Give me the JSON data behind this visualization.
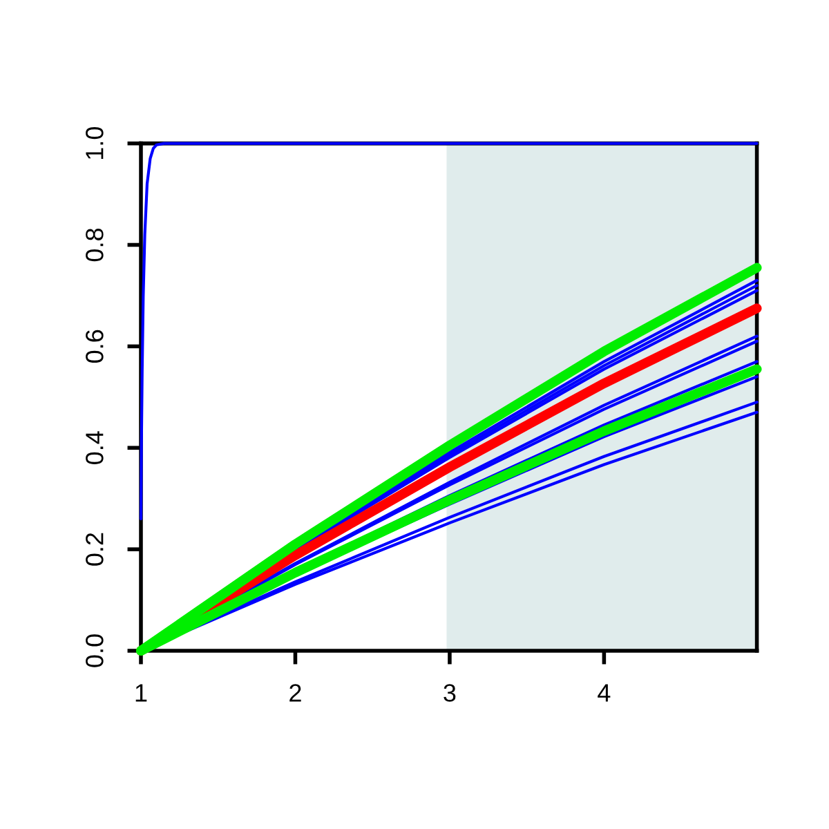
{
  "chart_data": {
    "type": "line",
    "x": [
      1,
      2,
      3,
      4,
      4.99
    ],
    "xlim": [
      1,
      4.99
    ],
    "ylim": [
      0,
      1
    ],
    "xticks": [
      1,
      2,
      3,
      4
    ],
    "yticks": [
      {
        "value": 0,
        "label": "0.0"
      },
      {
        "value": 0.2,
        "label": "0.2"
      },
      {
        "value": 0.4,
        "label": "0.4"
      },
      {
        "value": 0.6,
        "label": "0.6"
      },
      {
        "value": 0.8,
        "label": "0.8"
      },
      {
        "value": 1,
        "label": "1.0"
      }
    ],
    "grid": false,
    "legend": false,
    "bands": [
      {
        "axis": "x",
        "from": 2.98,
        "to": 4.99,
        "color": "#e0ecec"
      }
    ],
    "series": [
      {
        "color": "#0000ff",
        "x": [
          1,
          1.003,
          1.008,
          1.015,
          1.025,
          1.04,
          1.06,
          1.08,
          1.1,
          1.15,
          4.99
        ],
        "values": [
          0.26,
          0.4,
          0.55,
          0.7,
          0.82,
          0.92,
          0.97,
          0.99,
          0.997,
          1.0,
          1.0
        ]
      },
      {
        "color": "#0000ff",
        "values": [
          0,
          0.203,
          0.391,
          0.57,
          0.73
        ]
      },
      {
        "color": "#0000ff",
        "values": [
          0,
          0.2,
          0.386,
          0.562,
          0.72
        ]
      },
      {
        "color": "#0000ff",
        "values": [
          0,
          0.197,
          0.381,
          0.555,
          0.71
        ]
      },
      {
        "color": "#0000ff",
        "values": [
          0,
          0.172,
          0.332,
          0.484,
          0.62
        ]
      },
      {
        "color": "#0000ff",
        "values": [
          0,
          0.17,
          0.327,
          0.476,
          0.61
        ]
      },
      {
        "color": "#0000ff",
        "values": [
          0,
          0.158,
          0.306,
          0.445,
          0.57
        ]
      },
      {
        "color": "#0000ff",
        "values": [
          0,
          0.15,
          0.289,
          0.422,
          0.54
        ]
      },
      {
        "color": "#0000ff",
        "values": [
          0,
          0.136,
          0.263,
          0.383,
          0.49
        ]
      },
      {
        "color": "#0000ff",
        "values": [
          0,
          0.131,
          0.252,
          0.367,
          0.47
        ]
      },
      {
        "color": "#ff0000",
        "values": [
          0,
          0.188,
          0.362,
          0.527,
          0.675
        ]
      },
      {
        "color": "#00ee00",
        "values": [
          0,
          0.21,
          0.405,
          0.59,
          0.755
        ]
      },
      {
        "color": "#00ee00",
        "values": [
          0,
          0.154,
          0.297,
          0.433,
          0.555
        ]
      }
    ]
  }
}
